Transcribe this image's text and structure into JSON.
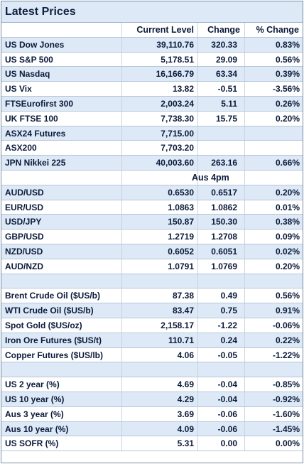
{
  "title": "Latest Prices",
  "header": [
    "",
    "Current Level",
    "Change",
    "% Change"
  ],
  "subheader_label": "Aus 4pm",
  "rows": [
    {
      "kind": "header"
    },
    {
      "kind": "data",
      "shade": "blue",
      "cells": [
        "US Dow Jones",
        "39,110.76",
        "320.33",
        "0.83%"
      ]
    },
    {
      "kind": "data",
      "shade": "white",
      "cells": [
        "US S&P 500",
        "5,178.51",
        "29.09",
        "0.56%"
      ]
    },
    {
      "kind": "data",
      "shade": "blue",
      "cells": [
        "US Nasdaq",
        "16,166.79",
        "63.34",
        "0.39%"
      ]
    },
    {
      "kind": "data",
      "shade": "white",
      "cells": [
        "US Vix",
        "13.82",
        "-0.51",
        "-3.56%"
      ]
    },
    {
      "kind": "data",
      "shade": "blue",
      "cells": [
        "FTSEurofirst 300",
        "2,003.24",
        "5.11",
        "0.26%"
      ]
    },
    {
      "kind": "data",
      "shade": "white",
      "cells": [
        "UK FTSE 100",
        "7,738.30",
        "15.75",
        "0.20%"
      ]
    },
    {
      "kind": "data",
      "shade": "blue",
      "cells": [
        "ASX24 Futures",
        "7,715.00",
        "",
        ""
      ]
    },
    {
      "kind": "data",
      "shade": "white",
      "cells": [
        "ASX200",
        "7,703.20",
        "",
        ""
      ]
    },
    {
      "kind": "data",
      "shade": "blue",
      "cells": [
        "JPN Nikkei 225",
        "40,003.60",
        "263.16",
        "0.66%"
      ]
    },
    {
      "kind": "subheader"
    },
    {
      "kind": "data",
      "shade": "blue",
      "cells": [
        "AUD/USD",
        "0.6530",
        "0.6517",
        "0.20%"
      ]
    },
    {
      "kind": "data",
      "shade": "white",
      "cells": [
        "EUR/USD",
        "1.0863",
        "1.0862",
        "0.01%"
      ]
    },
    {
      "kind": "data",
      "shade": "blue",
      "cells": [
        "USD/JPY",
        "150.87",
        "150.30",
        "0.38%"
      ]
    },
    {
      "kind": "data",
      "shade": "white",
      "cells": [
        "GBP/USD",
        "1.2719",
        "1.2708",
        "0.09%"
      ]
    },
    {
      "kind": "data",
      "shade": "blue",
      "cells": [
        "NZD/USD",
        "0.6052",
        "0.6051",
        "0.02%"
      ]
    },
    {
      "kind": "data",
      "shade": "white",
      "cells": [
        "AUD/NZD",
        "1.0791",
        "1.0769",
        "0.20%"
      ]
    },
    {
      "kind": "data",
      "shade": "blue",
      "cells": [
        "",
        "",
        "",
        ""
      ]
    },
    {
      "kind": "data",
      "shade": "white",
      "cells": [
        "Brent Crude Oil ($US/b)",
        "87.38",
        "0.49",
        "0.56%"
      ]
    },
    {
      "kind": "data",
      "shade": "blue",
      "cells": [
        "WTI Crude Oil ($US/b)",
        "83.47",
        "0.75",
        "0.91%"
      ]
    },
    {
      "kind": "data",
      "shade": "white",
      "cells": [
        "Spot Gold ($US/oz)",
        "2,158.17",
        "-1.22",
        "-0.06%"
      ]
    },
    {
      "kind": "data",
      "shade": "blue",
      "cells": [
        "Iron Ore Futures ($US/t)",
        "110.71",
        "0.24",
        "0.22%"
      ]
    },
    {
      "kind": "data",
      "shade": "white",
      "cells": [
        "Copper Futures ($US/lb)",
        "4.06",
        "-0.05",
        "-1.22%"
      ]
    },
    {
      "kind": "data",
      "shade": "blue",
      "cells": [
        "",
        "",
        "",
        ""
      ]
    },
    {
      "kind": "data",
      "shade": "white",
      "cells": [
        "US 2 year (%)",
        "4.69",
        "-0.04",
        "-0.85%"
      ]
    },
    {
      "kind": "data",
      "shade": "blue",
      "cells": [
        "US 10 year (%)",
        "4.29",
        "-0.04",
        "-0.92%"
      ]
    },
    {
      "kind": "data",
      "shade": "white",
      "cells": [
        "Aus 3 year (%)",
        "3.69",
        "-0.06",
        "-1.60%"
      ]
    },
    {
      "kind": "data",
      "shade": "blue",
      "cells": [
        "Aus 10 year (%)",
        "4.09",
        "-0.06",
        "-1.45%"
      ]
    },
    {
      "kind": "data",
      "shade": "white",
      "cells": [
        "US SOFR (%)",
        "5.31",
        "0.00",
        "0.00%"
      ]
    }
  ]
}
